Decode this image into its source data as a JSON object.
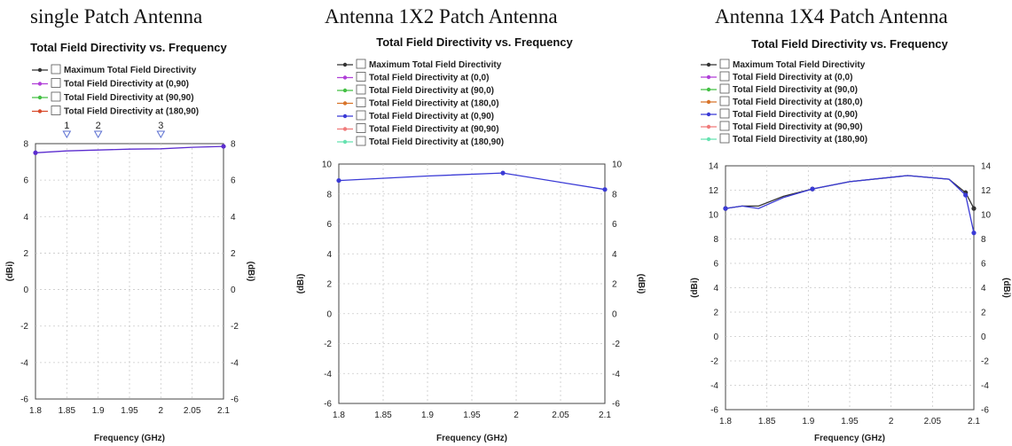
{
  "panels": [
    {
      "heading": "single Patch Antenna"
    },
    {
      "heading": "Antenna 1X2    Patch  Antenna"
    },
    {
      "heading": "Antenna 1X4  Patch Antenna"
    }
  ],
  "chart_data": [
    {
      "type": "line",
      "title": "Total Field Directivity vs. Frequency",
      "xlabel": "Frequency (GHz)",
      "ylabel": "(dBi)",
      "ylabel_right": "(dBi)",
      "xlim": [
        1.8,
        2.1
      ],
      "ylim": [
        -6,
        8
      ],
      "x_ticks": [
        "1.8",
        "1.85",
        "1.9",
        "1.95",
        "2",
        "2.05",
        "2.1"
      ],
      "y_ticks": [
        "-6",
        "-4",
        "-2",
        "0",
        "2",
        "4",
        "6",
        "8"
      ],
      "grid": true,
      "legend": [
        "Maximum Total Field Directivity",
        "Total Field Directivity at (0,90)",
        "Total Field Directivity at (90,90)",
        "Total Field Directivity at (180,90)"
      ],
      "markers": [
        {
          "label": "1",
          "x": 1.85
        },
        {
          "label": "2",
          "x": 1.9
        },
        {
          "label": "3",
          "x": 2.0
        }
      ],
      "series": [
        {
          "name": "Total Field Directivity at (0,90)",
          "color": "#5b2ccf",
          "x": [
            1.8,
            1.85,
            1.9,
            1.95,
            2.0,
            2.05,
            2.1
          ],
          "y": [
            7.5,
            7.6,
            7.65,
            7.7,
            7.72,
            7.8,
            7.85
          ]
        }
      ]
    },
    {
      "type": "line",
      "title": "Total Field Directivity vs. Frequency",
      "xlabel": "Frequency (GHz)",
      "ylabel": "(dBi)",
      "ylabel_right": "(dBi)",
      "xlim": [
        1.8,
        2.1
      ],
      "ylim": [
        -6,
        10
      ],
      "x_ticks": [
        "1.8",
        "1.85",
        "1.9",
        "1.95",
        "2",
        "2.05",
        "2.1"
      ],
      "y_ticks": [
        "-6",
        "-4",
        "-2",
        "0",
        "2",
        "4",
        "6",
        "8",
        "10"
      ],
      "grid": true,
      "legend": [
        "Maximum Total Field Directivity",
        "Total Field Directivity at (0,0)",
        "Total Field Directivity at (90,0)",
        "Total Field Directivity at (180,0)",
        "Total Field Directivity at (0,90)",
        "Total Field Directivity at (90,90)",
        "Total Field Directivity at (180,90)"
      ],
      "series": [
        {
          "name": "Total Field Directivity at (0,90)",
          "color": "#3a3ad6",
          "x": [
            1.8,
            1.9,
            1.985,
            2.1
          ],
          "y": [
            8.9,
            9.2,
            9.4,
            8.3
          ]
        }
      ]
    },
    {
      "type": "line",
      "title": "Total Field Directivity vs. Frequency",
      "xlabel": "Frequency (GHz)",
      "ylabel": "(dBi)",
      "ylabel_right": "(dBi)",
      "xlim": [
        1.8,
        2.1
      ],
      "ylim": [
        -6,
        14
      ],
      "x_ticks": [
        "1.8",
        "1.85",
        "1.9",
        "1.95",
        "2",
        "2.05",
        "2.1"
      ],
      "y_ticks": [
        "-6",
        "-4",
        "-2",
        "0",
        "2",
        "4",
        "6",
        "8",
        "10",
        "12",
        "14"
      ],
      "grid": true,
      "legend": [
        "Maximum Total Field Directivity",
        "Total Field Directivity at (0,0)",
        "Total Field Directivity at (90,0)",
        "Total Field Directivity at (180,0)",
        "Total Field Directivity at (0,90)",
        "Total Field Directivity at (90,90)",
        "Total Field Directivity at (180,90)"
      ],
      "series": [
        {
          "name": "Maximum Total Field Directivity",
          "color": "#333333",
          "x": [
            1.8,
            1.82,
            1.84,
            1.87,
            1.905,
            1.95,
            2.02,
            2.07,
            2.09,
            2.1
          ],
          "y": [
            10.5,
            10.7,
            10.7,
            11.5,
            12.1,
            12.7,
            13.2,
            12.9,
            11.8,
            10.5
          ]
        },
        {
          "name": "Total Field Directivity at (0,90)",
          "color": "#3a3ad6",
          "x": [
            1.8,
            1.82,
            1.84,
            1.87,
            1.905,
            1.95,
            2.02,
            2.07,
            2.09,
            2.1
          ],
          "y": [
            10.5,
            10.7,
            10.5,
            11.4,
            12.1,
            12.7,
            13.2,
            12.9,
            11.6,
            8.5
          ]
        }
      ]
    }
  ],
  "colors": {
    "legend": [
      "#333333",
      "#b03fd8",
      "#44c044",
      "#d8742a",
      "#3a3ad6",
      "#f07a7a",
      "#66e2b0"
    ],
    "legend_single": [
      "#333333",
      "#b03fd8",
      "#44c044",
      "#d84a2a"
    ],
    "marker": "#5b6fd0",
    "axis": "#444444",
    "grid": "#c9c9c9"
  }
}
